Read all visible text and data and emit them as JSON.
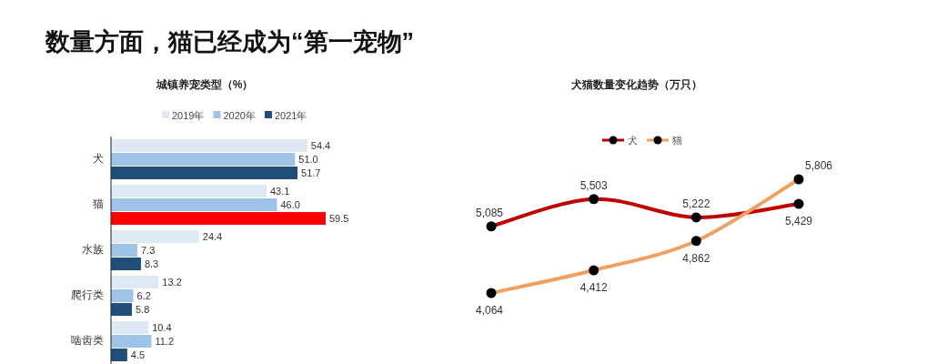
{
  "chart_data": [
    {
      "type": "bar",
      "orientation": "horizontal",
      "title": "数量方面，猫已经成为“第一宠物”",
      "subtitle": "城镇养宠类型（%）",
      "legend": "top",
      "categories": [
        "犬",
        "猫",
        "水族",
        "爬行类",
        "啮齿类"
      ],
      "series": [
        {
          "name": "2019年",
          "color": "#dfe9f6",
          "values": [
            54.4,
            43.1,
            24.4,
            13.2,
            10.4
          ],
          "value_labels": [
            "54.4",
            "43.1",
            "24.4",
            "13.2",
            "10.4"
          ]
        },
        {
          "name": "2020年",
          "color": "#9dc3e6",
          "values": [
            51.0,
            46.0,
            7.3,
            6.2,
            11.2
          ],
          "value_labels": [
            "51.0",
            "46.0",
            "7.3",
            "6.2",
            "11.2"
          ]
        },
        {
          "name": "2021年",
          "color": "#1f4e79",
          "colors": [
            "#1f4e79",
            "#ff0000",
            "#1f4e79",
            "#1f4e79",
            "#1f4e79"
          ],
          "values": [
            51.7,
            59.5,
            8.3,
            5.8,
            4.5
          ],
          "value_labels": [
            "51.7",
            "59.5",
            "8.3",
            "5.8",
            "4.5"
          ]
        }
      ]
    },
    {
      "type": "line",
      "title": "犬猫数量变化趋势（万只）",
      "legend": "top",
      "marker": "circle",
      "categories": [
        null,
        null,
        null,
        null
      ],
      "series": [
        {
          "name": "犬",
          "color": "#c00000",
          "values": [
            5085,
            5503,
            5222,
            5429
          ],
          "value_labels": [
            "5,085",
            "5,503",
            "5,222",
            "5,429"
          ]
        },
        {
          "name": "猫",
          "color": "#f0a060",
          "values": [
            4064,
            4412,
            4862,
            5806
          ],
          "value_labels": [
            "4,064",
            "4,412",
            "4,862",
            "5,806"
          ]
        }
      ]
    }
  ]
}
